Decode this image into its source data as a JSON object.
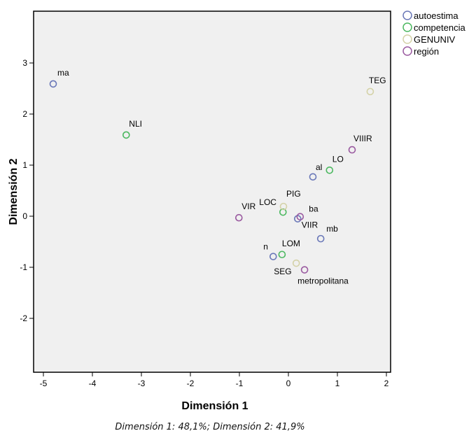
{
  "chart_data": {
    "type": "scatter",
    "title": "",
    "xlabel": "Dimensión 1",
    "ylabel": "Dimensión 2",
    "xlim": [
      -5,
      2
    ],
    "ylim": [
      -3.05,
      4.1
    ],
    "xticks": [
      -5,
      -4,
      -3,
      -2,
      -1,
      0,
      1,
      2
    ],
    "yticks": [
      -2,
      -1,
      0,
      1,
      2,
      3
    ],
    "grid": false,
    "legend_position": "top-right",
    "caption": "Dimensión 1: 48,1%; Dimensión 2: 41,9%",
    "series": [
      {
        "name": "autoestima",
        "color": "#6a78b8",
        "points": [
          {
            "label": "ma",
            "x": -4.8,
            "y": 2.59
          },
          {
            "label": "al",
            "x": 0.5,
            "y": 0.77
          },
          {
            "label": "ba",
            "x": 0.19,
            "y": -0.05
          },
          {
            "label": "mb",
            "x": 0.66,
            "y": -0.44
          },
          {
            "label": "n",
            "x": -0.31,
            "y": -0.79
          }
        ]
      },
      {
        "name": "competencia",
        "color": "#4cb860",
        "points": [
          {
            "label": "NLI",
            "x": -3.31,
            "y": 1.59
          },
          {
            "label": "LO",
            "x": 0.84,
            "y": 0.9
          },
          {
            "label": "LOC",
            "x": -0.11,
            "y": 0.08
          },
          {
            "label": "LOM",
            "x": -0.13,
            "y": -0.75
          }
        ]
      },
      {
        "name": "GENUNIV",
        "color": "#d4d2a8",
        "points": [
          {
            "label": "TEG",
            "x": 1.67,
            "y": 2.44
          },
          {
            "label": "PIG",
            "x": -0.1,
            "y": 0.19
          },
          {
            "label": "SEG",
            "x": 0.16,
            "y": -0.92
          }
        ]
      },
      {
        "name": "región",
        "color": "#9a5aa0",
        "points": [
          {
            "label": "VIIIR",
            "x": 1.3,
            "y": 1.3
          },
          {
            "label": "VIR",
            "x": -1.01,
            "y": -0.03
          },
          {
            "label": "VIIR",
            "x": 0.24,
            "y": -0.01
          },
          {
            "label": "metropolitana",
            "x": 0.33,
            "y": -1.05
          }
        ]
      }
    ]
  }
}
